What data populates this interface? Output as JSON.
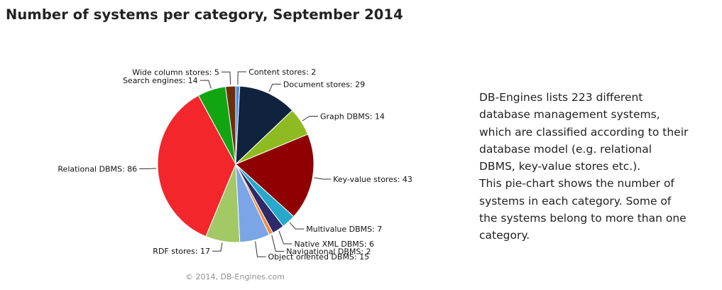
{
  "chart_data": {
    "type": "pie",
    "title": "Number of systems per category, September 2014",
    "slices": [
      {
        "label": "Content stores",
        "value": 2,
        "color": "#4a90e2"
      },
      {
        "label": "Document stores",
        "value": 29,
        "color": "#10223d"
      },
      {
        "label": "Graph DBMS",
        "value": 14,
        "color": "#8fbb22"
      },
      {
        "label": "Key-value stores",
        "value": 43,
        "color": "#8f0000"
      },
      {
        "label": "Multivalue DBMS",
        "value": 7,
        "color": "#27a9cc"
      },
      {
        "label": "Native XML DBMS",
        "value": 6,
        "color": "#2c2a6b"
      },
      {
        "label": "Navigational DBMS",
        "value": 2,
        "color": "#f28a3c"
      },
      {
        "label": "Object oriented DBMS",
        "value": 15,
        "color": "#7ba5e6"
      },
      {
        "label": "RDF stores",
        "value": 17,
        "color": "#a2c965"
      },
      {
        "label": "Relational DBMS",
        "value": 86,
        "color": "#f2262b"
      },
      {
        "label": "Search engines",
        "value": 14,
        "color": "#12a512"
      },
      {
        "label": "Wide column stores",
        "value": 5,
        "color": "#6b2f0e"
      }
    ],
    "credit": "© 2014, DB-Engines.com"
  },
  "description": {
    "lines": [
      "DB-Engines lists 223 different",
      "database management systems,",
      "which are classified according to their",
      "database model (e.g. relational",
      "DBMS, key-value stores etc.).",
      "This pie-chart shows the number of",
      "systems in each category. Some of",
      "the systems belong to more than one",
      "category."
    ]
  }
}
